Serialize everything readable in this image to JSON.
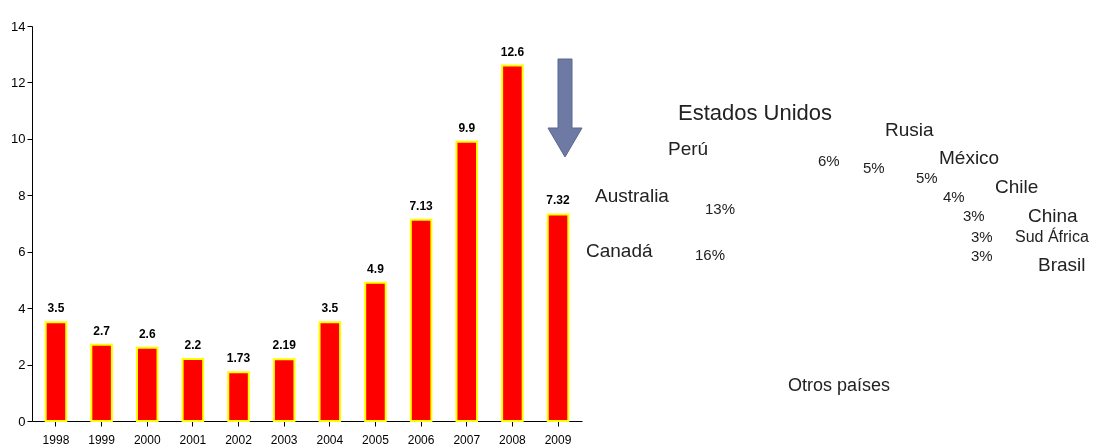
{
  "chart_data": [
    {
      "type": "bar",
      "categories": [
        "1998",
        "1999",
        "2000",
        "2001",
        "2002",
        "2003",
        "2004",
        "2005",
        "2006",
        "2007",
        "2008",
        "2009"
      ],
      "values": [
        3.5,
        2.7,
        2.6,
        2.2,
        1.73,
        2.19,
        3.5,
        4.9,
        7.13,
        9.9,
        12.6,
        7.32
      ],
      "color": "#ff0000",
      "ylim": [
        0,
        14
      ],
      "yticks": [
        0,
        2,
        4,
        6,
        8,
        10,
        12,
        14
      ],
      "data_labels": true
    },
    {
      "type": "other",
      "annotations": [
        "Estados Unidos",
        "Rusia",
        "Perú",
        "6%",
        "5%",
        "México",
        "5%",
        "Chile",
        "4%",
        "Australia",
        "13%",
        "3%",
        "China",
        "3%",
        "Sud África",
        "Canadá",
        "16%",
        "3%",
        "Brasil",
        "Otros países"
      ]
    }
  ]
}
